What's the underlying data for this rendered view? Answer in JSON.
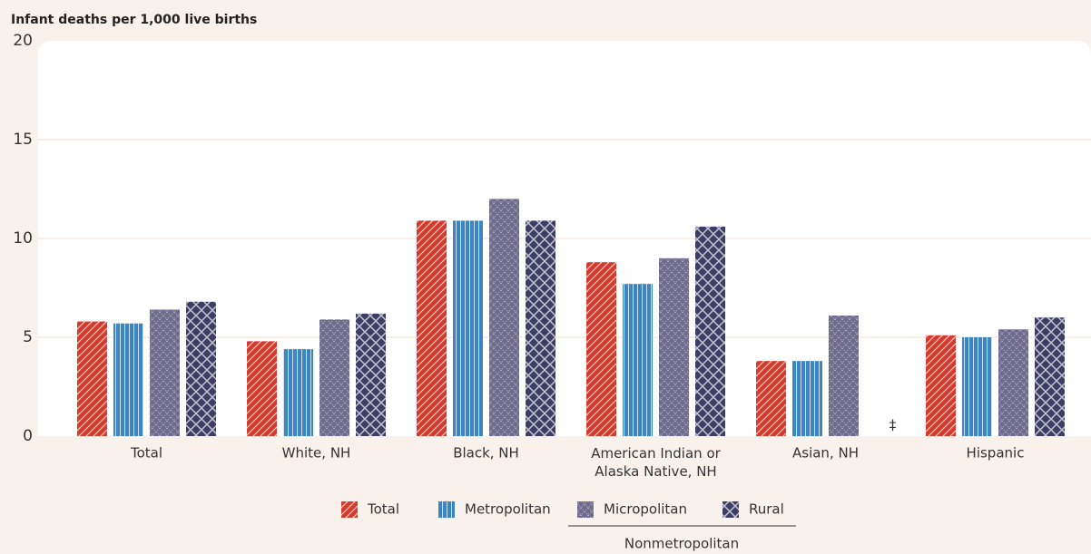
{
  "chart_data": {
    "type": "bar",
    "y_axis_label": "Infant deaths per 1,000 live births",
    "categories": [
      "Total",
      "White, NH",
      "Black, NH",
      "American Indian or Alaska Native, NH",
      "Asian, NH",
      "Hispanic"
    ],
    "series": [
      {
        "name": "Total",
        "color": "#d63a2c",
        "pattern": "diagonal",
        "values": [
          5.8,
          4.8,
          10.9,
          8.8,
          3.8,
          5.1
        ]
      },
      {
        "name": "Metropolitan",
        "color": "#3b85c3",
        "pattern": "vertical",
        "values": [
          5.7,
          4.4,
          10.9,
          7.7,
          3.8,
          5.0
        ]
      },
      {
        "name": "Micropolitan",
        "color": "#6f6b8f",
        "pattern": "dotted-cross",
        "values": [
          6.4,
          5.9,
          12.0,
          9.0,
          6.1,
          5.4
        ]
      },
      {
        "name": "Rural",
        "color": "#3c3e66",
        "pattern": "cross",
        "values": [
          6.8,
          6.2,
          10.9,
          10.6,
          null,
          6.0
        ],
        "value_labels": [
          null,
          null,
          null,
          null,
          "‡",
          null
        ]
      }
    ],
    "legend_group_label": "Nonmetropolitan",
    "ylim": [
      0,
      20
    ],
    "yticks": [
      0,
      5,
      10,
      15,
      20
    ],
    "grid": true
  }
}
